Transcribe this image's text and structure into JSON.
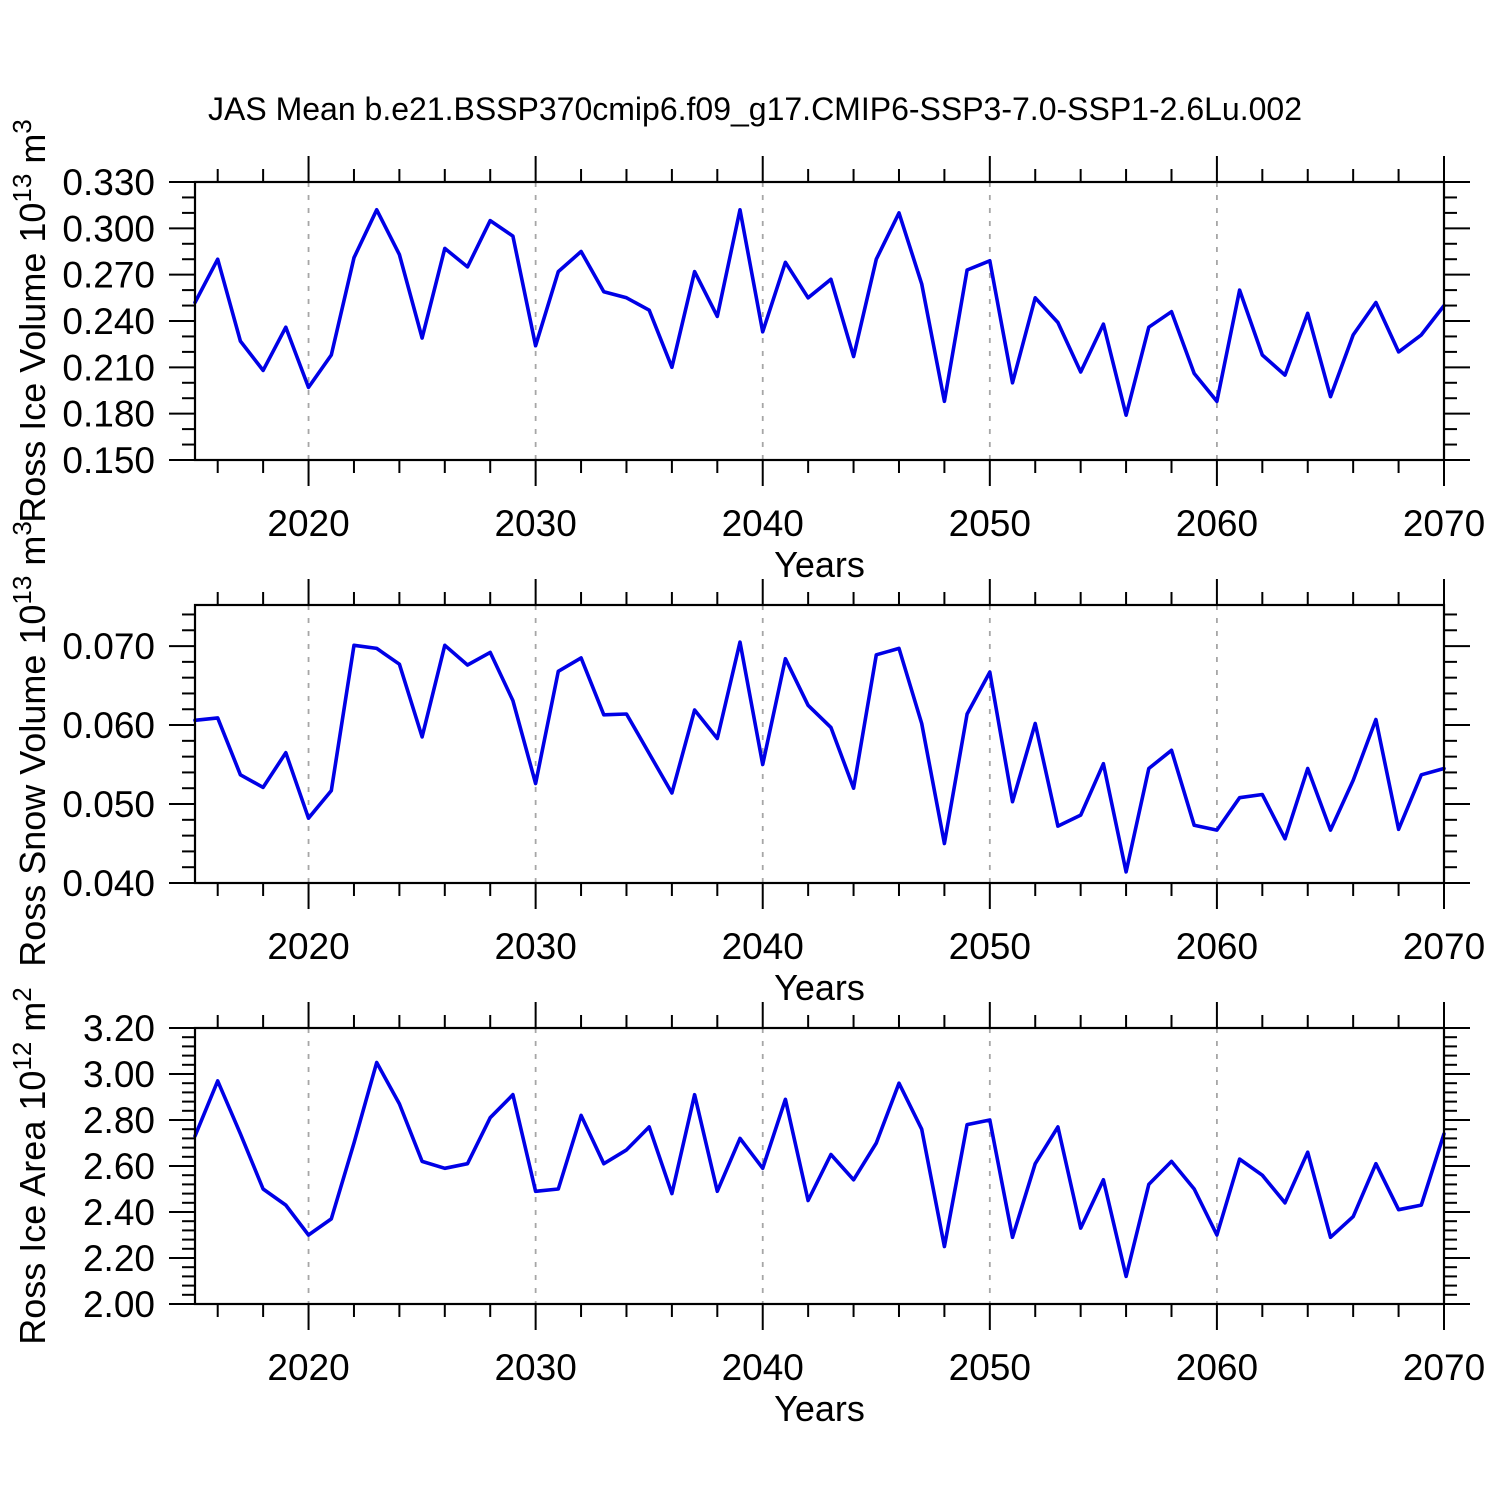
{
  "figure": {
    "title": "JAS Mean b.e21.BSSP370cmip6.f09_g17.CMIP6-SSP3-7.0-SSP1-2.6Lu.002",
    "xlabel": "Years",
    "line_color": "#0000E6",
    "grid_color": "#A6A6A6",
    "axis_color": "#000000",
    "background": "#FFFFFF"
  },
  "years": [
    2015,
    2016,
    2017,
    2018,
    2019,
    2020,
    2021,
    2022,
    2023,
    2024,
    2025,
    2026,
    2027,
    2028,
    2029,
    2030,
    2031,
    2032,
    2033,
    2034,
    2035,
    2036,
    2037,
    2038,
    2039,
    2040,
    2041,
    2042,
    2043,
    2044,
    2045,
    2046,
    2047,
    2048,
    2049,
    2050,
    2051,
    2052,
    2053,
    2054,
    2055,
    2056,
    2057,
    2058,
    2059,
    2060,
    2061,
    2062,
    2063,
    2064,
    2065,
    2066,
    2067,
    2068,
    2069,
    2070
  ],
  "chart_data": [
    {
      "type": "line",
      "panel": "ross-ice-volume",
      "ylabel": "Ross Ice Volume 10^13 m^3",
      "ylabel_parts": [
        {
          "text": "Ross Ice Volume 10"
        },
        {
          "text": "13",
          "sup": true
        },
        {
          "text": " m"
        },
        {
          "text": "3",
          "sup": true
        }
      ],
      "xlabel": "Years",
      "xlim": [
        2015,
        2070
      ],
      "xticks": [
        2020,
        2030,
        2040,
        2050,
        2060,
        2070
      ],
      "xtick_labels": [
        "2020",
        "2030",
        "2040",
        "2050",
        "2060",
        "2070"
      ],
      "x_minor_step": 2,
      "grid_x": [
        2020,
        2030,
        2040,
        2050,
        2060
      ],
      "ylim": [
        0.15,
        0.33
      ],
      "yticks": [
        0.15,
        0.18,
        0.21,
        0.24,
        0.27,
        0.3,
        0.33
      ],
      "ytick_labels": [
        "0.150",
        "0.180",
        "0.210",
        "0.240",
        "0.270",
        "0.300",
        "0.330"
      ],
      "y_minor_step": 0.01,
      "x_start": 2015,
      "values": [
        0.252,
        0.28,
        0.227,
        0.208,
        0.236,
        0.197,
        0.218,
        0.281,
        0.312,
        0.283,
        0.229,
        0.287,
        0.275,
        0.305,
        0.295,
        0.224,
        0.272,
        0.285,
        0.259,
        0.255,
        0.247,
        0.21,
        0.272,
        0.243,
        0.312,
        0.233,
        0.278,
        0.255,
        0.267,
        0.217,
        0.28,
        0.31,
        0.264,
        0.188,
        0.273,
        0.279,
        0.2,
        0.255,
        0.239,
        0.207,
        0.238,
        0.179,
        0.236,
        0.246,
        0.206,
        0.188,
        0.26,
        0.218,
        0.205,
        0.245,
        0.191,
        0.231,
        0.252,
        0.22,
        0.231,
        0.25
      ]
    },
    {
      "type": "line",
      "panel": "ross-snow-volume",
      "ylabel": "Ross Snow Volume 10^13 m^3",
      "ylabel_parts": [
        {
          "text": "Ross Snow Volume 10"
        },
        {
          "text": "13",
          "sup": true
        },
        {
          "text": " m"
        },
        {
          "text": "3",
          "sup": true
        }
      ],
      "xlabel": "Years",
      "xlim": [
        2015,
        2070
      ],
      "xticks": [
        2020,
        2030,
        2040,
        2050,
        2060,
        2070
      ],
      "xtick_labels": [
        "2020",
        "2030",
        "2040",
        "2050",
        "2060",
        "2070"
      ],
      "x_minor_step": 2,
      "grid_x": [
        2020,
        2030,
        2040,
        2050,
        2060
      ],
      "ylim": [
        0.04,
        0.0752
      ],
      "yticks": [
        0.04,
        0.05,
        0.06,
        0.07
      ],
      "ytick_labels": [
        "0.040",
        "0.050",
        "0.060",
        "0.070"
      ],
      "y_minor_step": 0.002,
      "x_start": 2015,
      "values": [
        0.0606,
        0.0609,
        0.0537,
        0.0521,
        0.0565,
        0.0482,
        0.0517,
        0.0701,
        0.0697,
        0.0677,
        0.0585,
        0.0701,
        0.0676,
        0.0692,
        0.0631,
        0.0526,
        0.0668,
        0.0685,
        0.0613,
        0.0614,
        0.0564,
        0.0514,
        0.0619,
        0.0583,
        0.0705,
        0.055,
        0.0684,
        0.0625,
        0.0597,
        0.052,
        0.0689,
        0.0697,
        0.0602,
        0.045,
        0.0614,
        0.0667,
        0.0503,
        0.0602,
        0.0472,
        0.0486,
        0.0551,
        0.0414,
        0.0545,
        0.0568,
        0.0473,
        0.0467,
        0.0508,
        0.0512,
        0.0456,
        0.0545,
        0.0467,
        0.053,
        0.0607,
        0.0468,
        0.0537,
        0.0545
      ]
    },
    {
      "type": "line",
      "panel": "ross-ice-area",
      "ylabel": "Ross Ice Area 10^12 m^2",
      "ylabel_parts": [
        {
          "text": "Ross Ice Area 10"
        },
        {
          "text": "12",
          "sup": true
        },
        {
          "text": " m"
        },
        {
          "text": "2",
          "sup": true
        }
      ],
      "xlabel": "Years",
      "xlim": [
        2015,
        2070
      ],
      "xticks": [
        2020,
        2030,
        2040,
        2050,
        2060,
        2070
      ],
      "xtick_labels": [
        "2020",
        "2030",
        "2040",
        "2050",
        "2060",
        "2070"
      ],
      "x_minor_step": 2,
      "grid_x": [
        2020,
        2030,
        2040,
        2050,
        2060
      ],
      "ylim": [
        2.0,
        3.2
      ],
      "yticks": [
        2.0,
        2.2,
        2.4,
        2.6,
        2.8,
        3.0,
        3.2
      ],
      "ytick_labels": [
        "2.00",
        "2.20",
        "2.40",
        "2.60",
        "2.80",
        "3.00",
        "3.20"
      ],
      "y_minor_step": 0.04,
      "x_start": 2015,
      "values": [
        2.73,
        2.97,
        2.74,
        2.5,
        2.43,
        2.3,
        2.37,
        2.7,
        3.05,
        2.87,
        2.62,
        2.59,
        2.61,
        2.81,
        2.91,
        2.49,
        2.5,
        2.82,
        2.61,
        2.67,
        2.77,
        2.48,
        2.91,
        2.49,
        2.72,
        2.59,
        2.89,
        2.45,
        2.65,
        2.54,
        2.7,
        2.96,
        2.76,
        2.25,
        2.78,
        2.8,
        2.29,
        2.61,
        2.77,
        2.33,
        2.54,
        2.12,
        2.52,
        2.62,
        2.5,
        2.3,
        2.63,
        2.56,
        2.44,
        2.66,
        2.29,
        2.38,
        2.61,
        2.41,
        2.43,
        2.74
      ]
    }
  ]
}
